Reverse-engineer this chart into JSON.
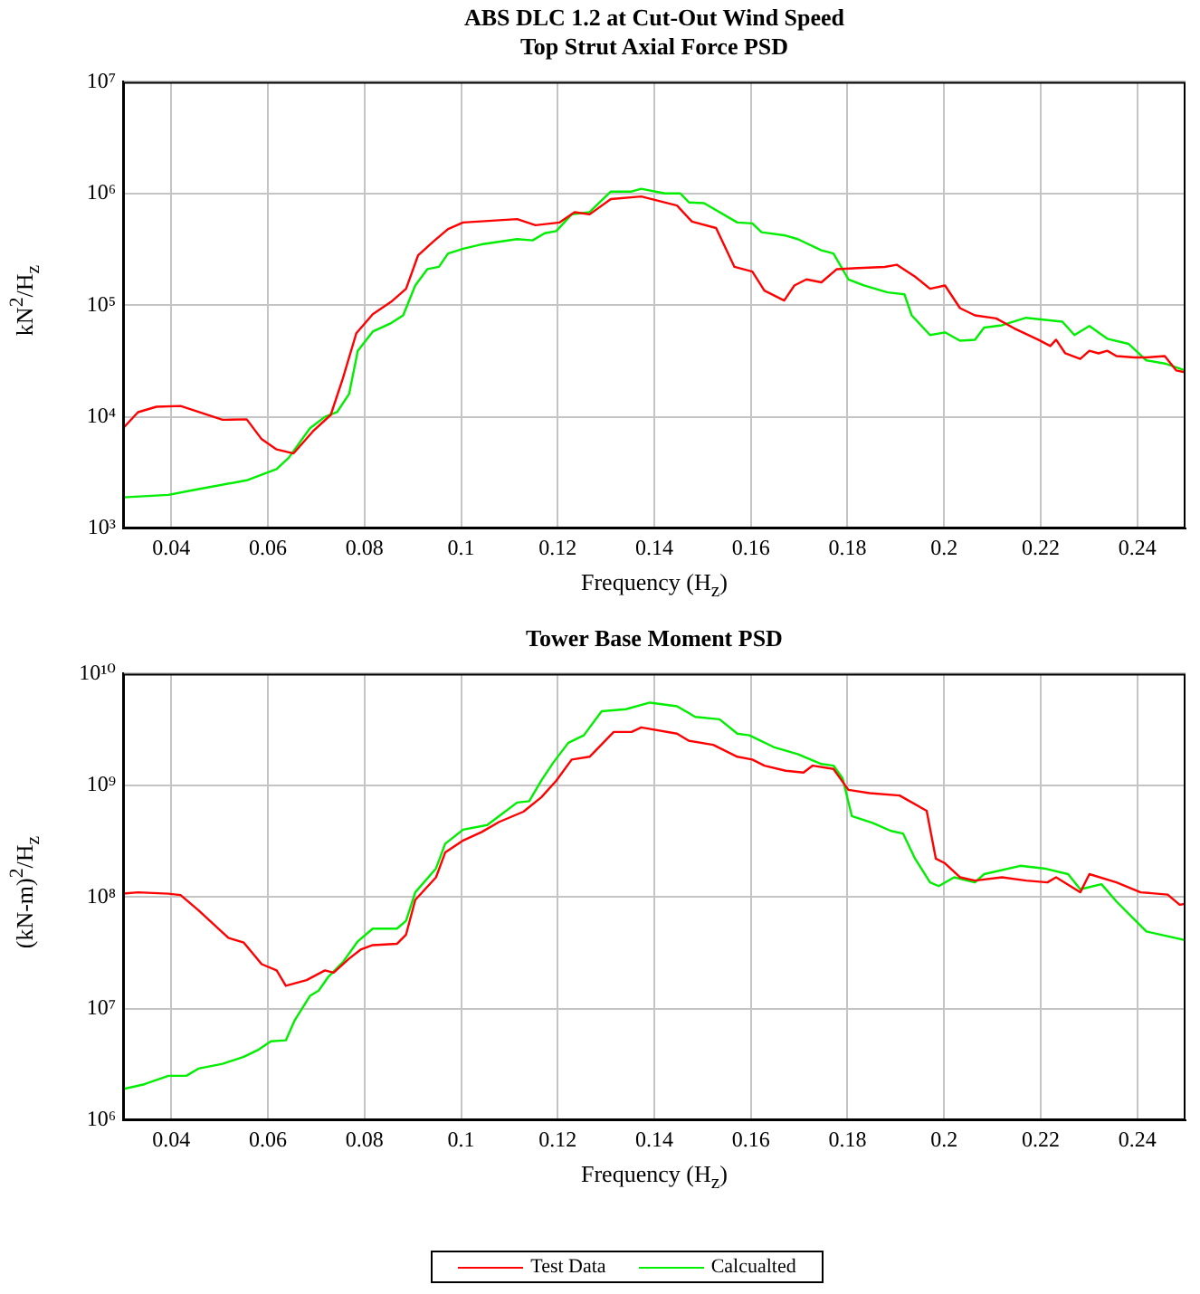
{
  "chart_data": [
    {
      "type": "line",
      "title": "ABS DLC 1.2 at Cut-Out Wind Speed",
      "subtitle": "Top Strut Axial Force PSD",
      "xlabel": "Frequency (H$_{z}$)",
      "ylabel": "kN$^{2}$/H$_{z}$",
      "xlim": [
        0.03,
        0.25
      ],
      "xticks": [
        0.04,
        0.06,
        0.08,
        0.1,
        0.12,
        0.14,
        0.16,
        0.18,
        0.2,
        0.22,
        0.24
      ],
      "ylim": [
        1000,
        10000000
      ],
      "yticks": [
        {
          "value": 1000,
          "label": "10³"
        },
        {
          "value": 10000,
          "label": "10⁴"
        },
        {
          "value": 100000,
          "label": "10⁵"
        },
        {
          "value": 1000000,
          "label": "10⁶"
        },
        {
          "value": 10000000,
          "label": "10⁷"
        }
      ],
      "log": "y",
      "grid": true,
      "legend": false,
      "series": [
        {
          "color": "#ff0000",
          "x": [
            0.03,
            0.0331,
            0.0369,
            0.0419,
            0.0506,
            0.0556,
            0.0587,
            0.0618,
            0.0653,
            0.0693,
            0.073,
            0.0755,
            0.0783,
            0.0817,
            0.0855,
            0.0886,
            0.0911,
            0.0942,
            0.0973,
            0.1004,
            0.1116,
            0.1154,
            0.1204,
            0.1235,
            0.1266,
            0.131,
            0.1373,
            0.1447,
            0.1478,
            0.1528,
            0.1566,
            0.1603,
            0.1628,
            0.1669,
            0.169,
            0.1715,
            0.1746,
            0.1778,
            0.1821,
            0.1877,
            0.1902,
            0.194,
            0.1971,
            0.2002,
            0.2033,
            0.2064,
            0.2108,
            0.2145,
            0.2195,
            0.222,
            0.2232,
            0.2251,
            0.2282,
            0.2301,
            0.232,
            0.2338,
            0.2357,
            0.2394,
            0.2419,
            0.2457,
            0.2481,
            0.25
          ],
          "values": [
            7900,
            11000,
            12300,
            12500,
            9400,
            9500,
            6300,
            5100,
            4700,
            7400,
            10400,
            22000,
            56000,
            83000,
            107000,
            140000,
            280000,
            370000,
            480000,
            550000,
            590000,
            520000,
            550000,
            680000,
            650000,
            890000,
            940000,
            780000,
            560000,
            490000,
            220000,
            200000,
            135000,
            110000,
            150000,
            170000,
            160000,
            210000,
            215000,
            220000,
            230000,
            180000,
            140000,
            150000,
            94000,
            81000,
            76000,
            62000,
            49000,
            43000,
            49000,
            37000,
            33000,
            39000,
            37000,
            39000,
            35000,
            34000,
            34000,
            35000,
            26000,
            25000
          ]
        },
        {
          "color": "#00ee00",
          "x": [
            0.03,
            0.0394,
            0.0444,
            0.0556,
            0.0593,
            0.0618,
            0.0643,
            0.0687,
            0.0718,
            0.0743,
            0.0768,
            0.0786,
            0.0817,
            0.0855,
            0.088,
            0.0905,
            0.093,
            0.0954,
            0.0973,
            0.1004,
            0.1042,
            0.1116,
            0.1148,
            0.1173,
            0.1197,
            0.1229,
            0.1266,
            0.131,
            0.1353,
            0.1373,
            0.1422,
            0.1454,
            0.1472,
            0.1503,
            0.1572,
            0.1603,
            0.1622,
            0.1672,
            0.1697,
            0.1746,
            0.1771,
            0.1802,
            0.1834,
            0.1883,
            0.1918,
            0.1933,
            0.1971,
            0.2002,
            0.2033,
            0.2064,
            0.2083,
            0.212,
            0.217,
            0.2245,
            0.227,
            0.2301,
            0.2338,
            0.2382,
            0.2419,
            0.2457,
            0.25
          ],
          "values": [
            1900,
            2000,
            2200,
            2700,
            3100,
            3400,
            4300,
            7900,
            10000,
            11000,
            16000,
            39000,
            58000,
            69000,
            81000,
            150000,
            210000,
            220000,
            290000,
            320000,
            350000,
            390000,
            380000,
            440000,
            460000,
            650000,
            680000,
            1040000,
            1040000,
            1100000,
            1000000,
            1000000,
            830000,
            820000,
            550000,
            540000,
            450000,
            420000,
            390000,
            310000,
            290000,
            170000,
            150000,
            130000,
            125000,
            81000,
            54000,
            57000,
            48000,
            49000,
            63000,
            66000,
            77000,
            71000,
            54000,
            65000,
            50000,
            45000,
            32000,
            30000,
            26000
          ]
        }
      ]
    },
    {
      "type": "line",
      "title": "Tower Base Moment PSD",
      "xlabel": "Frequency (H$_{z}$)",
      "ylabel": "(kN-m)$^{2}$/H$_{z}$",
      "xlim": [
        0.03,
        0.25
      ],
      "xticks": [
        0.04,
        0.06,
        0.08,
        0.1,
        0.12,
        0.14,
        0.16,
        0.18,
        0.2,
        0.22,
        0.24
      ],
      "ylim": [
        1000000,
        10000000000
      ],
      "yticks": [
        {
          "value": 1000000,
          "label": "10⁶"
        },
        {
          "value": 10000000,
          "label": "10⁷"
        },
        {
          "value": 100000000,
          "label": "10⁸"
        },
        {
          "value": 1000000000,
          "label": "10⁹"
        },
        {
          "value": 10000000000,
          "label": "10¹⁰"
        }
      ],
      "log": "y",
      "grid": true,
      "legend": "bottom",
      "series": [
        {
          "name": "Test Data",
          "color": "#ff0000",
          "x": [
            0.03,
            0.0331,
            0.0394,
            0.0419,
            0.0456,
            0.0518,
            0.055,
            0.0587,
            0.0618,
            0.0637,
            0.068,
            0.0718,
            0.0736,
            0.0768,
            0.0793,
            0.0817,
            0.0867,
            0.0886,
            0.0905,
            0.0948,
            0.0967,
            0.1004,
            0.1042,
            0.1079,
            0.1129,
            0.1166,
            0.1197,
            0.1229,
            0.1266,
            0.1316,
            0.1353,
            0.1373,
            0.1447,
            0.1472,
            0.1522,
            0.1572,
            0.1603,
            0.1628,
            0.1672,
            0.1709,
            0.1728,
            0.1771,
            0.1802,
            0.1846,
            0.1908,
            0.1964,
            0.1983,
            0.2002,
            0.2033,
            0.2064,
            0.212,
            0.217,
            0.2214,
            0.2232,
            0.2282,
            0.2301,
            0.2357,
            0.2407,
            0.2463,
            0.2488,
            0.25
          ],
          "values": [
            107000000.0,
            110000000.0,
            107000000.0,
            104000000.0,
            76000000.0,
            43000000.0,
            39000000.0,
            25000000.0,
            22000000.0,
            16000000.0,
            18000000.0,
            22000000.0,
            21000000.0,
            28000000.0,
            34000000.0,
            37000000.0,
            38000000.0,
            46000000.0,
            94000000.0,
            150000000.0,
            250000000.0,
            320000000.0,
            380000000.0,
            470000000.0,
            580000000.0,
            780000000.0,
            1100000000.0,
            1700000000.0,
            1800000000.0,
            3000000000.0,
            3000000000.0,
            3300000000.0,
            2900000000.0,
            2500000000.0,
            2300000000.0,
            1800000000.0,
            1700000000.0,
            1500000000.0,
            1350000000.0,
            1300000000.0,
            1500000000.0,
            1400000000.0,
            910000000.0,
            850000000.0,
            810000000.0,
            590000000.0,
            220000000.0,
            200000000.0,
            150000000.0,
            140000000.0,
            150000000.0,
            140000000.0,
            135000000.0,
            150000000.0,
            110000000.0,
            160000000.0,
            135000000.0,
            110000000.0,
            105000000.0,
            85000000.0,
            87000000.0
          ]
        },
        {
          "name": "Calcualted",
          "color": "#00ee00",
          "x": [
            0.03,
            0.0344,
            0.0394,
            0.0431,
            0.0456,
            0.0506,
            0.055,
            0.0581,
            0.0606,
            0.0637,
            0.0655,
            0.0687,
            0.0705,
            0.0724,
            0.0755,
            0.0786,
            0.0817,
            0.0867,
            0.0886,
            0.0905,
            0.0948,
            0.0967,
            0.1004,
            0.1054,
            0.1079,
            0.1116,
            0.1141,
            0.1166,
            0.1191,
            0.1222,
            0.1254,
            0.1291,
            0.1341,
            0.1391,
            0.1447,
            0.1485,
            0.1535,
            0.1572,
            0.1597,
            0.1647,
            0.1697,
            0.1746,
            0.1771,
            0.179,
            0.1809,
            0.1852,
            0.189,
            0.1915,
            0.194,
            0.1971,
            0.1989,
            0.2021,
            0.2064,
            0.2083,
            0.2158,
            0.2207,
            0.2257,
            0.2282,
            0.2326,
            0.2357,
            0.2419,
            0.25
          ],
          "values": [
            1900000.0,
            2100000.0,
            2500000.0,
            2500000.0,
            2900000.0,
            3200000.0,
            3700000.0,
            4300000.0,
            5100000.0,
            5200000.0,
            7800000.0,
            13000000.0,
            14500000.0,
            19000000.0,
            26000000.0,
            40000000.0,
            52000000.0,
            52000000.0,
            61000000.0,
            110000000.0,
            180000000.0,
            300000000.0,
            400000000.0,
            440000000.0,
            530000000.0,
            700000000.0,
            720000000.0,
            1100000000.0,
            1600000000.0,
            2400000000.0,
            2800000000.0,
            4600000000.0,
            4800000000.0,
            5500000000.0,
            5100000000.0,
            4100000000.0,
            3900000000.0,
            2900000000.0,
            2800000000.0,
            2200000000.0,
            1900000000.0,
            1550000000.0,
            1500000000.0,
            1150000000.0,
            530000000.0,
            460000000.0,
            390000000.0,
            370000000.0,
            220000000.0,
            135000000.0,
            125000000.0,
            150000000.0,
            135000000.0,
            160000000.0,
            190000000.0,
            180000000.0,
            160000000.0,
            117000000.0,
            130000000.0,
            91000000.0,
            49000000.0,
            41000000.0
          ]
        }
      ]
    }
  ]
}
